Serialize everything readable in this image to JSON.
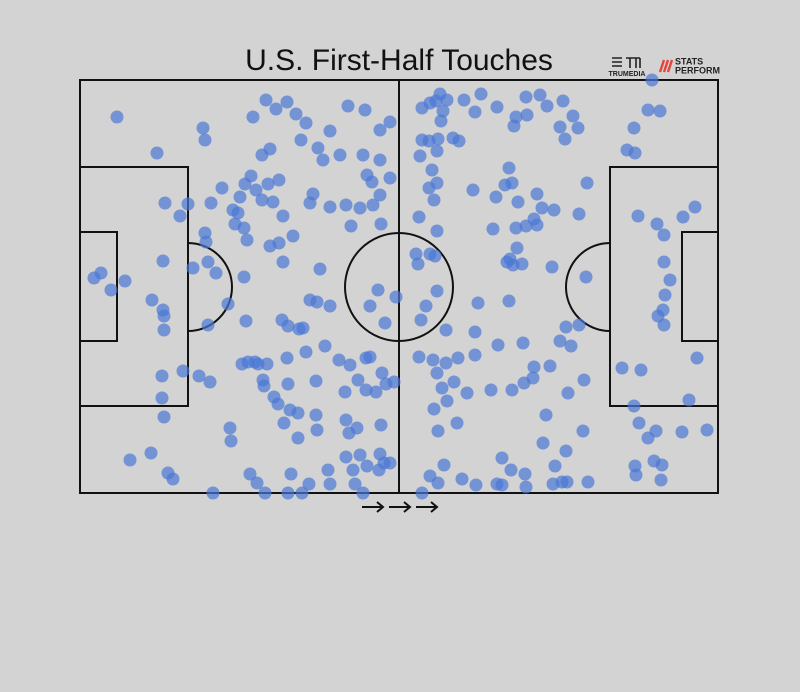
{
  "chart_data": {
    "type": "scatter",
    "title": "U.S. First-Half Touches",
    "credits": [
      "TRUMEDIA",
      "STATS",
      "PERFORM"
    ],
    "color": "#4a78d6",
    "xlim": [
      0,
      638
    ],
    "ylim": [
      413,
      0
    ],
    "x": [
      37,
      77,
      123,
      125,
      186,
      196,
      207,
      216,
      226,
      173,
      268,
      285,
      300,
      310,
      250,
      221,
      238,
      243,
      260,
      182,
      190,
      283,
      300,
      171,
      165,
      176,
      188,
      199,
      142,
      160,
      182,
      193,
      203,
      153,
      158,
      131,
      85,
      108,
      100,
      155,
      164,
      125,
      126,
      167,
      190,
      199,
      213,
      233,
      230,
      250,
      266,
      280,
      293,
      300,
      287,
      292,
      310,
      271,
      301,
      83,
      113,
      128,
      136,
      164,
      203,
      240,
      21,
      14,
      31,
      45,
      72,
      83,
      84,
      84,
      128,
      148,
      166,
      202,
      208,
      219,
      223,
      230,
      237,
      250,
      290,
      298,
      305,
      316,
      245,
      226,
      207,
      187,
      162,
      168,
      175,
      178,
      103,
      119,
      130,
      82,
      82,
      84,
      183,
      184,
      208,
      194,
      198,
      210,
      218,
      236,
      259,
      270,
      278,
      286,
      290,
      302,
      306,
      314,
      296,
      286,
      265,
      204,
      218,
      236,
      237,
      266,
      269,
      277,
      301,
      150,
      151,
      50,
      71,
      88,
      93,
      133,
      170,
      177,
      185,
      208,
      222,
      211,
      229,
      248,
      250,
      266,
      273,
      280,
      287,
      300,
      304,
      275,
      299,
      310,
      283,
      342,
      350,
      356,
      360,
      367,
      384,
      401,
      417,
      446,
      460,
      467,
      483,
      395,
      436,
      447,
      361,
      363,
      493,
      480,
      498,
      342,
      349,
      358,
      373,
      379,
      357,
      340,
      434,
      485,
      547,
      555,
      554,
      568,
      580,
      572,
      429,
      352,
      349,
      357,
      354,
      393,
      425,
      432,
      416,
      457,
      462,
      474,
      438,
      454,
      446,
      507,
      499,
      339,
      357,
      413,
      436,
      457,
      336,
      338,
      350,
      355,
      427,
      433,
      430,
      442,
      437,
      472,
      506,
      357,
      346,
      341,
      398,
      429,
      395,
      366,
      486,
      499,
      480,
      491,
      443,
      418,
      395,
      378,
      366,
      353,
      339,
      357,
      362,
      374,
      387,
      411,
      432,
      444,
      453,
      454,
      470,
      504,
      488,
      367,
      354,
      377,
      358,
      466,
      463,
      503,
      486,
      422,
      350,
      364,
      382,
      396,
      417,
      422,
      431,
      445,
      446,
      475,
      473,
      482,
      487,
      508,
      342,
      358,
      542,
      561,
      554,
      559,
      568,
      576,
      602,
      627,
      609,
      617,
      584,
      578,
      583,
      585,
      590,
      584,
      584,
      577,
      603,
      615,
      558,
      555,
      556,
      574,
      582,
      581
    ],
    "values": [
      37,
      73,
      48,
      60,
      20,
      29,
      22,
      34,
      43,
      37,
      26,
      30,
      50,
      42,
      51,
      60,
      68,
      80,
      75,
      75,
      69,
      75,
      80,
      96,
      104,
      110,
      104,
      100,
      108,
      117,
      120,
      122,
      136,
      130,
      133,
      123,
      123,
      124,
      136,
      144,
      148,
      153,
      162,
      160,
      166,
      163,
      156,
      114,
      123,
      127,
      125,
      128,
      125,
      115,
      95,
      102,
      98,
      146,
      144,
      181,
      188,
      182,
      193,
      197,
      182,
      189,
      193,
      198,
      210,
      201,
      220,
      230,
      236,
      250,
      245,
      224,
      241,
      240,
      246,
      249,
      248,
      220,
      222,
      226,
      226,
      210,
      243,
      217,
      266,
      272,
      278,
      284,
      284,
      282,
      282,
      284,
      291,
      296,
      302,
      296,
      318,
      337,
      300,
      306,
      304,
      317,
      324,
      330,
      333,
      301,
      280,
      285,
      300,
      278,
      277,
      293,
      304,
      302,
      312,
      310,
      312,
      343,
      358,
      335,
      350,
      340,
      353,
      348,
      345,
      348,
      361,
      380,
      373,
      393,
      399,
      413,
      394,
      403,
      413,
      413,
      413,
      394,
      404,
      390,
      404,
      377,
      390,
      375,
      386,
      374,
      383,
      404,
      390,
      383,
      413,
      28,
      23,
      21,
      14,
      20,
      20,
      14,
      27,
      17,
      15,
      26,
      21,
      32,
      37,
      35,
      41,
      31,
      36,
      47,
      48,
      60,
      61,
      59,
      58,
      61,
      71,
      76,
      46,
      59,
      70,
      73,
      48,
      30,
      31,
      0,
      88,
      90,
      108,
      103,
      120,
      110,
      105,
      103,
      117,
      114,
      128,
      130,
      122,
      139,
      146,
      103,
      134,
      137,
      151,
      149,
      148,
      145,
      174,
      184,
      174,
      176,
      182,
      185,
      179,
      184,
      168,
      187,
      197,
      211,
      226,
      240,
      223,
      221,
      252,
      250,
      247,
      245,
      261,
      266,
      263,
      265,
      275,
      278,
      283,
      280,
      277,
      293,
      308,
      302,
      313,
      310,
      310,
      303,
      298,
      287,
      286,
      300,
      313,
      321,
      329,
      343,
      351,
      335,
      363,
      351,
      371,
      378,
      396,
      385,
      399,
      405,
      404,
      405,
      390,
      394,
      407,
      386,
      404,
      402,
      402,
      402,
      413,
      403,
      288,
      290,
      326,
      343,
      358,
      351,
      352,
      350,
      320,
      278,
      245,
      236,
      230,
      215,
      200,
      182,
      155,
      144,
      137,
      127,
      136,
      386,
      395,
      381,
      385,
      400
    ]
  }
}
